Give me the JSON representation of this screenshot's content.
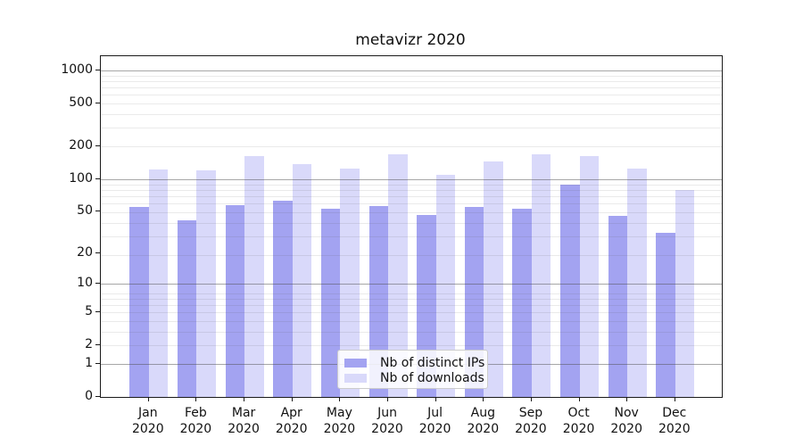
{
  "chart_data": {
    "type": "bar",
    "title": "metavizr 2020",
    "categories": [
      "Jan",
      "Feb",
      "Mar",
      "Apr",
      "May",
      "Jun",
      "Jul",
      "Aug",
      "Sep",
      "Oct",
      "Nov",
      "Dec"
    ],
    "category_year": "2020",
    "series": [
      {
        "name": "Nb of distinct IPs",
        "color": "#a3a3f1",
        "values": [
          55,
          41,
          57,
          63,
          53,
          56,
          46,
          55,
          53,
          89,
          45,
          31
        ]
      },
      {
        "name": "Nb of downloads",
        "color": "#d9d9fa",
        "values": [
          122,
          120,
          162,
          138,
          125,
          170,
          110,
          144,
          169,
          162,
          124,
          79
        ]
      }
    ],
    "xlabel": "",
    "ylabel": "",
    "yscale": "symlog",
    "y_ticks": [
      0,
      1,
      2,
      5,
      10,
      20,
      50,
      100,
      200,
      500,
      1000
    ],
    "ylim": [
      0,
      1340
    ],
    "grid": true,
    "grid_major_values": [
      1,
      10,
      100,
      1000
    ],
    "legend_position": "inside bottom-center",
    "colors": {
      "major_gridline": "#aaaaaa",
      "minor_gridline": "#e9e9e9",
      "axis": "#1a1a1a",
      "legend_border": "#cccccc"
    }
  }
}
